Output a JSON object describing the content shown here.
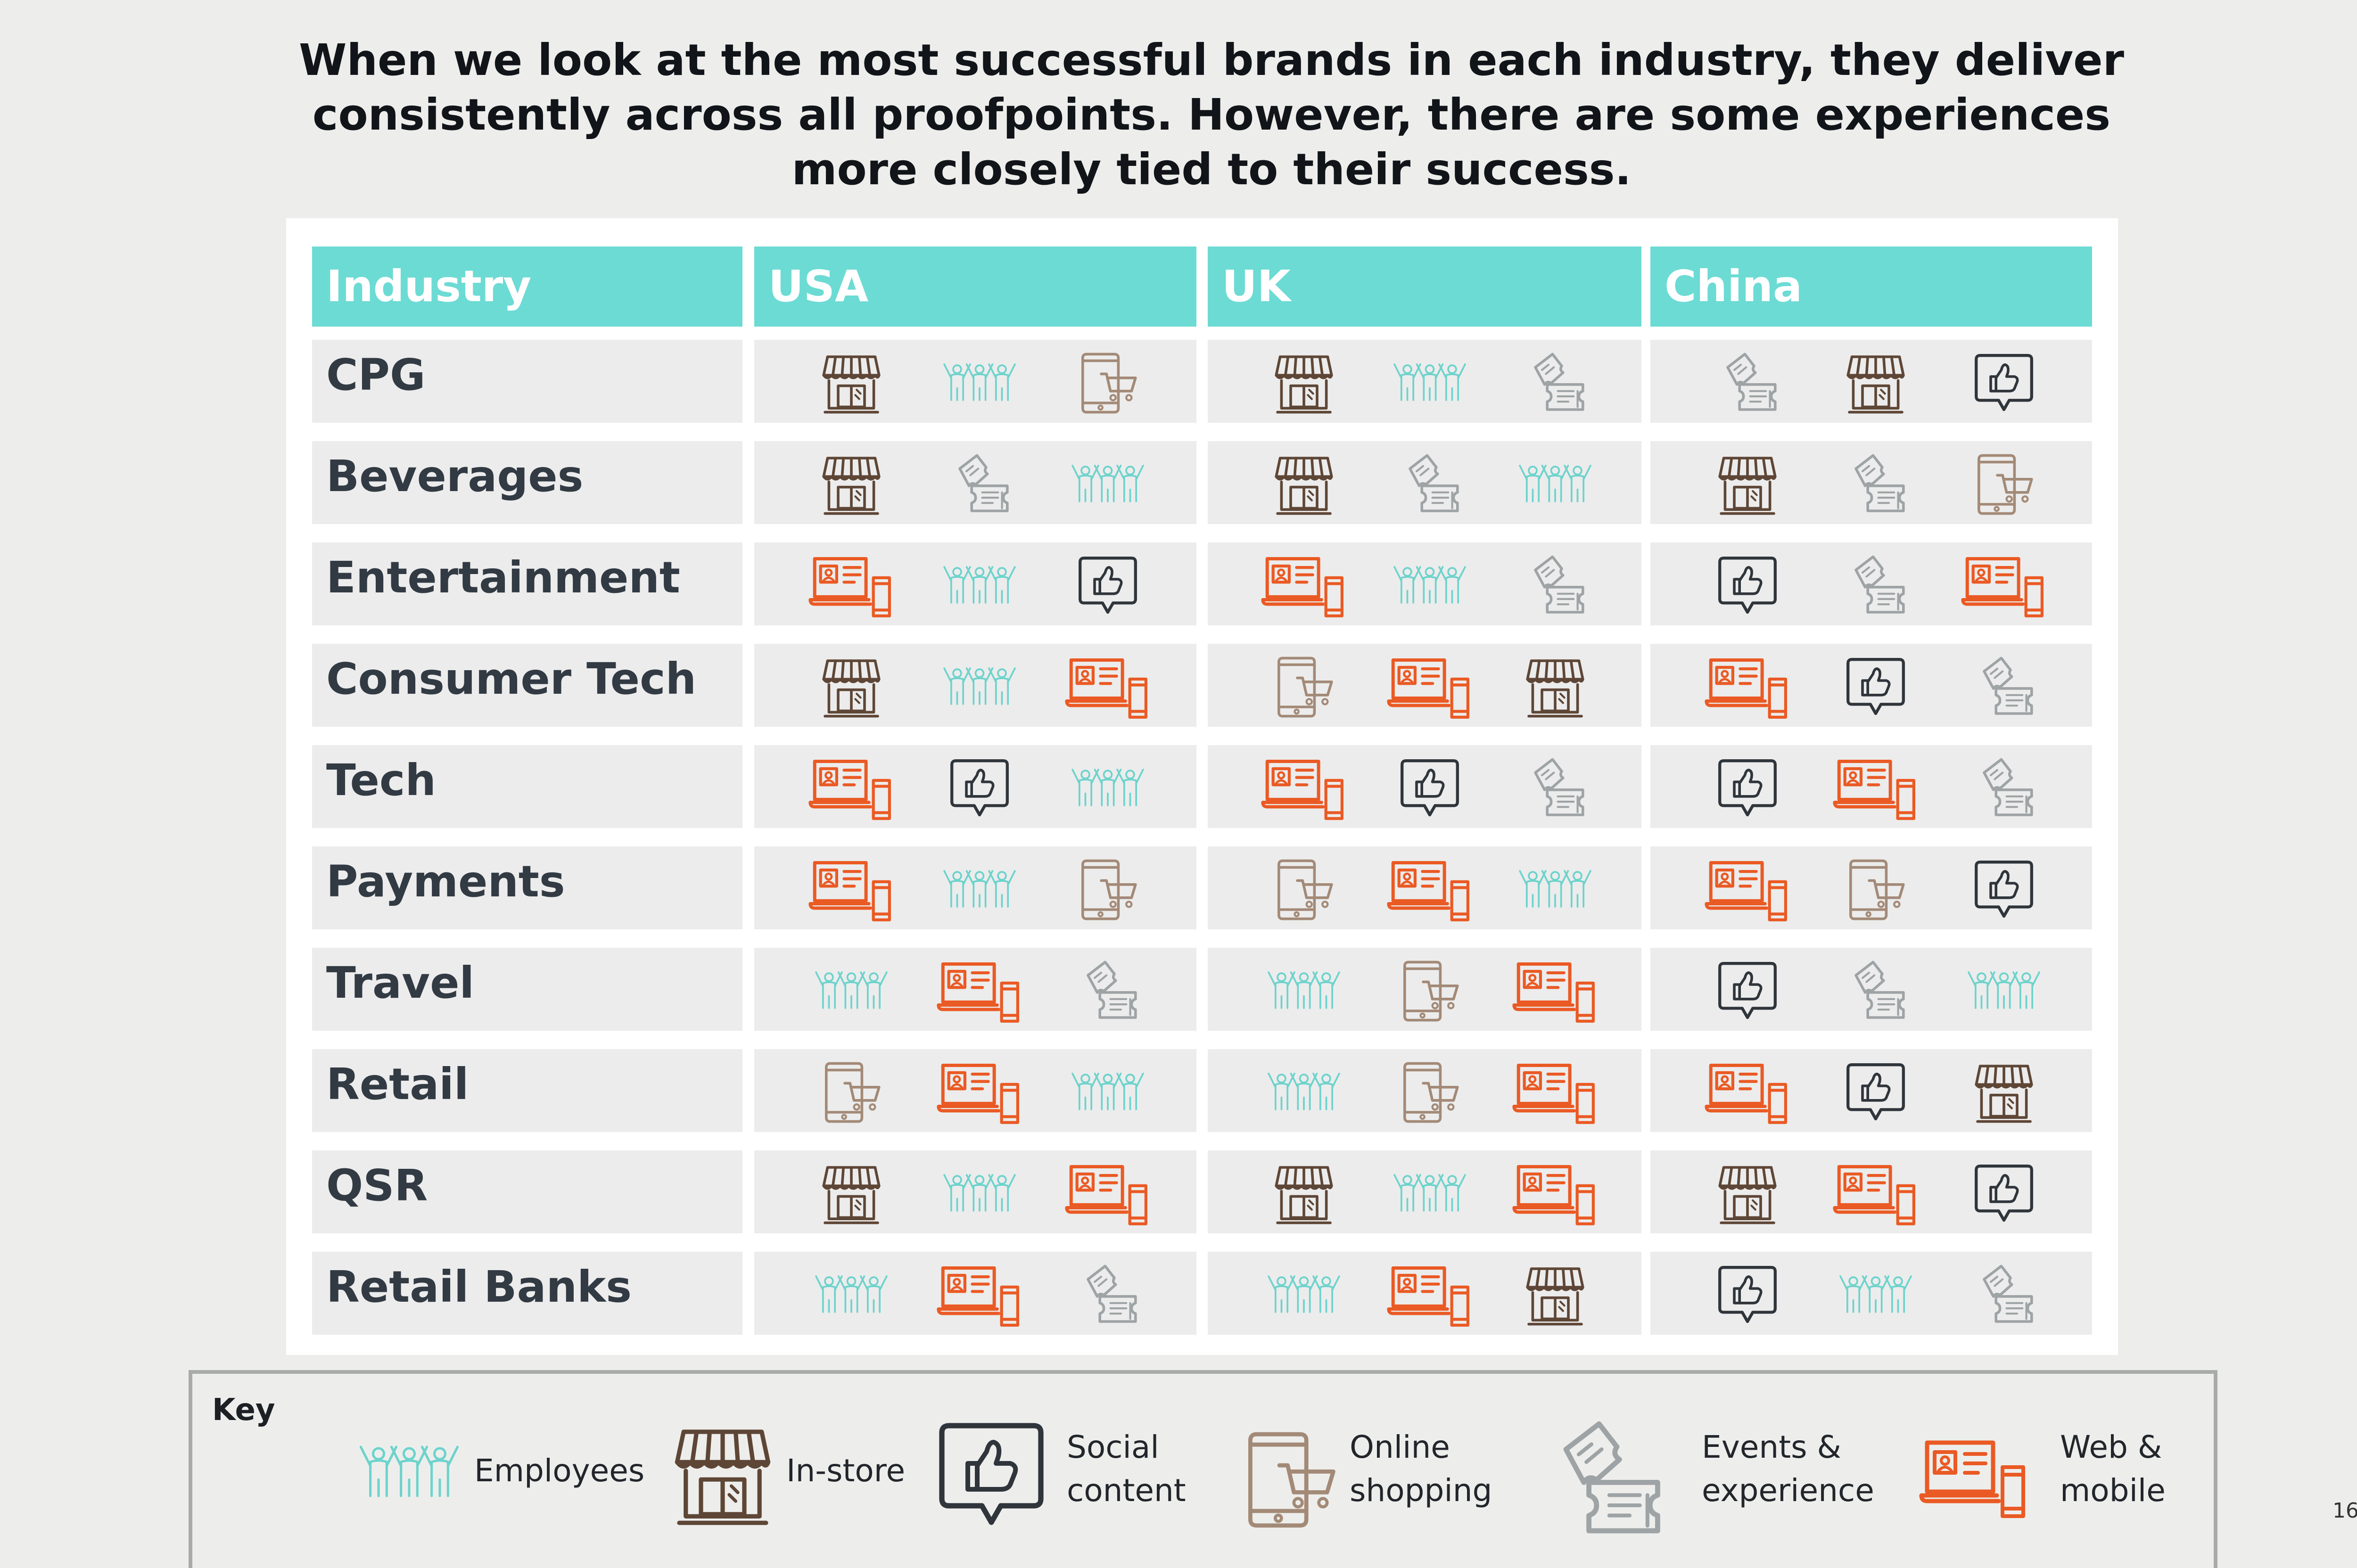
{
  "title": {
    "line1": "When we look at the most successful brands in each industry, they deliver",
    "line2": "consistently across all proofpoints. However, there are some experiences",
    "line3": "more closely tied to their success."
  },
  "table": {
    "industry_header": "Industry",
    "regions": [
      "USA",
      "UK",
      "China"
    ],
    "rows": [
      {
        "industry": "CPG",
        "usa": [
          "in-store",
          "employees",
          "online-shopping"
        ],
        "uk": [
          "in-store",
          "employees",
          "events"
        ],
        "china": [
          "events",
          "in-store",
          "social"
        ]
      },
      {
        "industry": "Beverages",
        "usa": [
          "in-store",
          "events",
          "employees"
        ],
        "uk": [
          "in-store",
          "events",
          "employees"
        ],
        "china": [
          "in-store",
          "events",
          "online-shopping"
        ]
      },
      {
        "industry": "Entertainment",
        "usa": [
          "web-mobile",
          "employees",
          "social"
        ],
        "uk": [
          "web-mobile",
          "employees",
          "events"
        ],
        "china": [
          "social",
          "events",
          "web-mobile"
        ]
      },
      {
        "industry": "Consumer Tech",
        "usa": [
          "in-store",
          "employees",
          "web-mobile"
        ],
        "uk": [
          "online-shopping",
          "web-mobile",
          "in-store"
        ],
        "china": [
          "web-mobile",
          "social",
          "events"
        ]
      },
      {
        "industry": "Tech",
        "usa": [
          "web-mobile",
          "social",
          "employees"
        ],
        "uk": [
          "web-mobile",
          "social",
          "events"
        ],
        "china": [
          "social",
          "web-mobile",
          "events"
        ]
      },
      {
        "industry": "Payments",
        "usa": [
          "web-mobile",
          "employees",
          "online-shopping"
        ],
        "uk": [
          "online-shopping",
          "web-mobile",
          "employees"
        ],
        "china": [
          "web-mobile",
          "online-shopping",
          "social"
        ]
      },
      {
        "industry": "Travel",
        "usa": [
          "employees",
          "web-mobile",
          "events"
        ],
        "uk": [
          "employees",
          "online-shopping",
          "web-mobile"
        ],
        "china": [
          "social",
          "events",
          "employees"
        ]
      },
      {
        "industry": "Retail",
        "usa": [
          "online-shopping",
          "web-mobile",
          "employees"
        ],
        "uk": [
          "employees",
          "online-shopping",
          "web-mobile"
        ],
        "china": [
          "web-mobile",
          "social",
          "in-store"
        ]
      },
      {
        "industry": "QSR",
        "usa": [
          "in-store",
          "employees",
          "web-mobile"
        ],
        "uk": [
          "in-store",
          "employees",
          "web-mobile"
        ],
        "china": [
          "in-store",
          "web-mobile",
          "social"
        ]
      },
      {
        "industry": "Retail Banks",
        "usa": [
          "employees",
          "web-mobile",
          "events"
        ],
        "uk": [
          "employees",
          "web-mobile",
          "in-store"
        ],
        "china": [
          "social",
          "employees",
          "events"
        ]
      }
    ]
  },
  "key": {
    "title": "Key",
    "items": [
      {
        "icon": "employees",
        "line1": "Employees",
        "line2": ""
      },
      {
        "icon": "in-store",
        "line1": "In-store",
        "line2": ""
      },
      {
        "icon": "social",
        "line1": "Social",
        "line2": "content"
      },
      {
        "icon": "online-shopping",
        "line1": "Online",
        "line2": "shopping"
      },
      {
        "icon": "events",
        "line1": "Events &",
        "line2": "experience"
      },
      {
        "icon": "web-mobile",
        "line1": "Web &",
        "line2": "mobile"
      }
    ]
  },
  "colors": {
    "header": "#6cdbd4",
    "employees": "#6cd3cc",
    "in-store": "#5e4636",
    "social": "#2f353b",
    "online-shopping": "#a38a77",
    "events": "#9ea3a5",
    "web-mobile": "#ea5a24"
  },
  "page_number": "16"
}
